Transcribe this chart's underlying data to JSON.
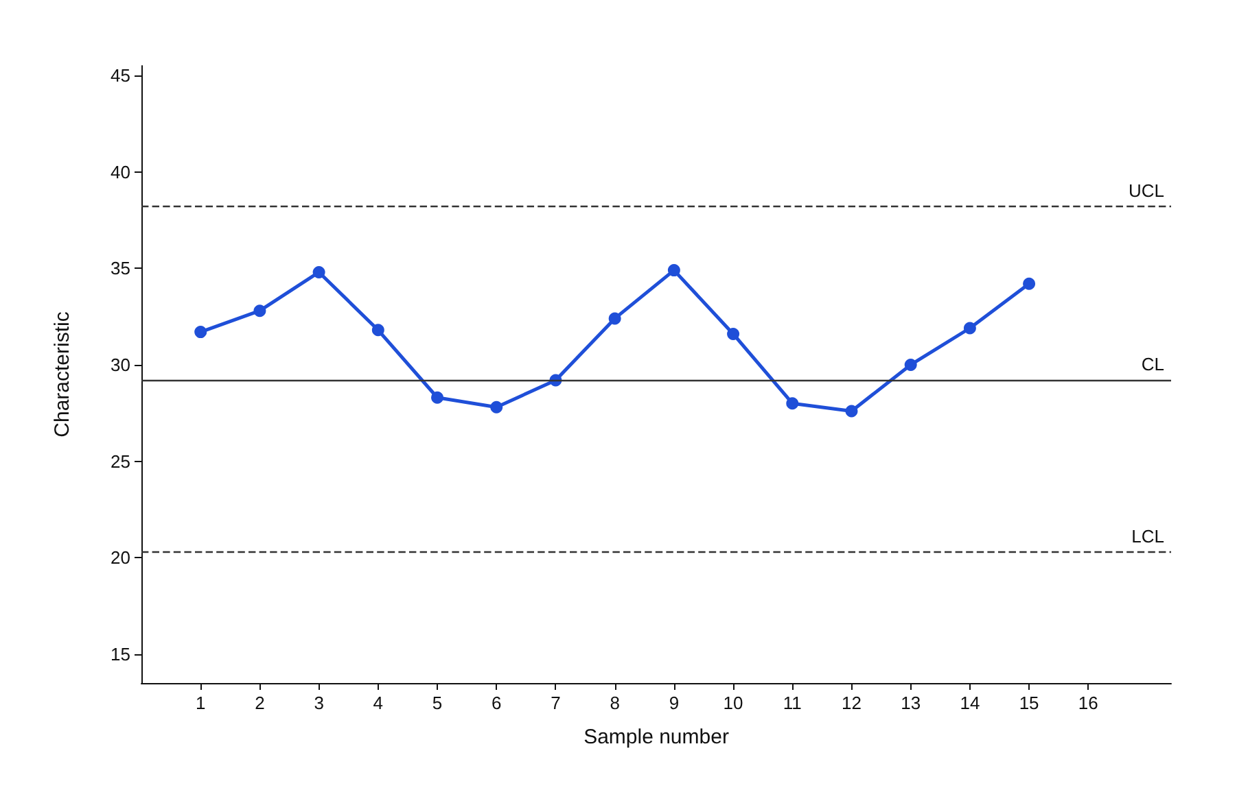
{
  "chart_data": {
    "type": "line",
    "xlabel": "Sample number",
    "ylabel": "Characteristic",
    "x": [
      1,
      2,
      3,
      4,
      5,
      6,
      7,
      8,
      9,
      10,
      11,
      12,
      13,
      14,
      15
    ],
    "series": [
      {
        "color": "#1f4fd8",
        "values": [
          31.7,
          32.8,
          34.8,
          31.8,
          28.3,
          27.8,
          29.2,
          32.4,
          34.9,
          31.6,
          28.0,
          27.6,
          30.0,
          31.9,
          34.2
        ]
      }
    ],
    "xlim": [
      0,
      17.4
    ],
    "xticks": [
      1,
      2,
      3,
      4,
      5,
      6,
      7,
      8,
      9,
      10,
      11,
      12,
      13,
      14,
      15,
      16
    ],
    "ylim": [
      13.5,
      45.5
    ],
    "yticks": [
      15,
      20,
      25,
      30,
      35,
      40,
      45
    ],
    "ref_lines": [
      {
        "axis": "y",
        "value": 38.2,
        "label": "UCL",
        "line_style": "dashed",
        "color": "#333333"
      },
      {
        "axis": "y",
        "value": 29.2,
        "label": "CL",
        "line_style": "solid",
        "color": "#333333"
      },
      {
        "axis": "y",
        "value": 20.3,
        "label": "LCL",
        "line_style": "dashed",
        "color": "#333333"
      }
    ],
    "grid": false,
    "marker": "circle",
    "line_style": "solid"
  }
}
